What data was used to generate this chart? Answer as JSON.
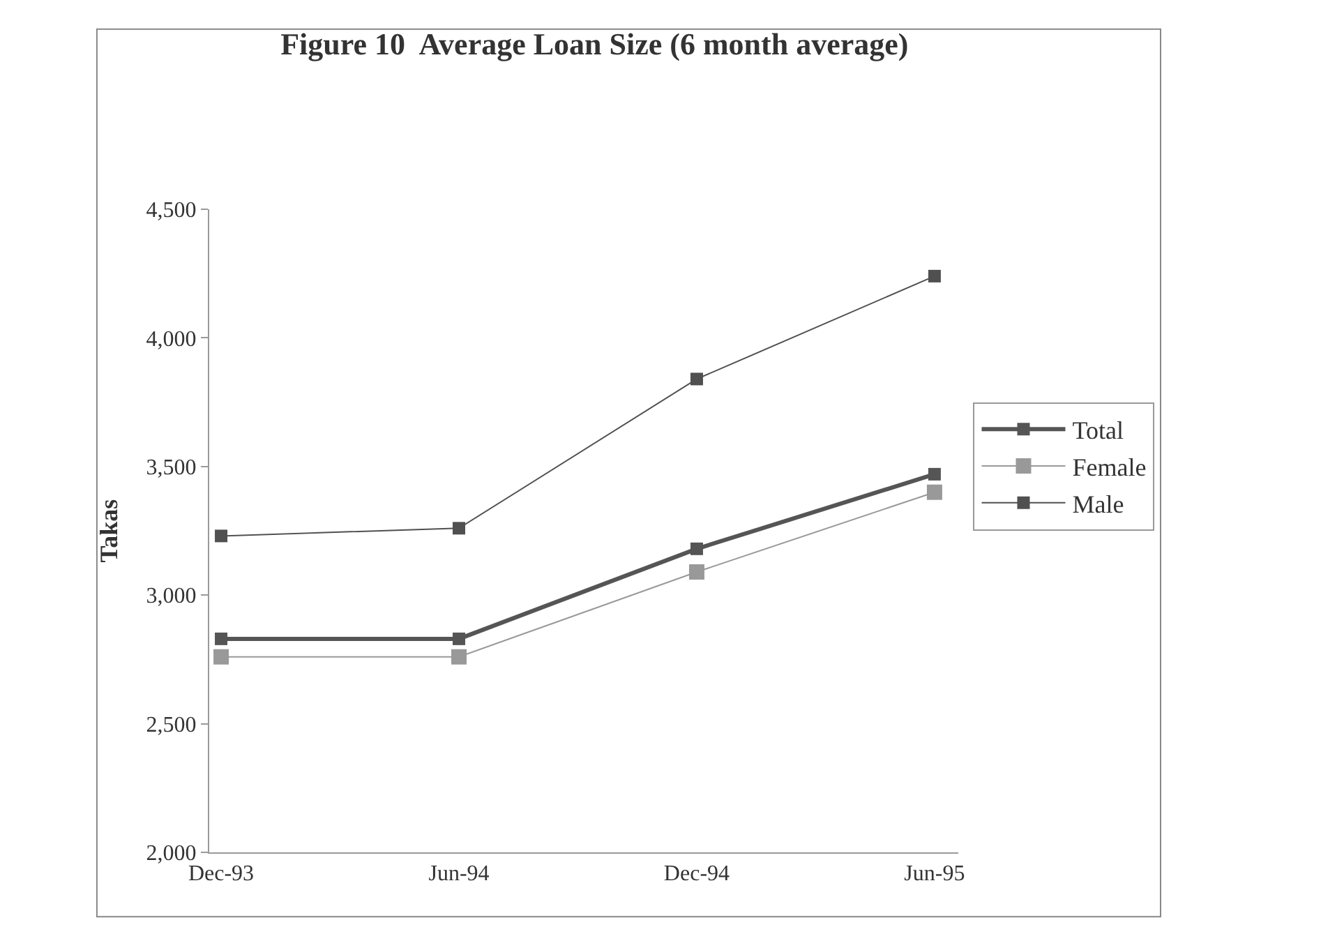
{
  "chart_data": {
    "type": "line",
    "title": "Figure 10  Average Loan Size (6 month average)",
    "ylabel": "Takas",
    "categories": [
      "Dec-93",
      "Jun-94",
      "Dec-94",
      "Jun-95"
    ],
    "series": [
      {
        "name": "Total",
        "color": "#555555",
        "values": [
          2830,
          2830,
          3180,
          3470
        ]
      },
      {
        "name": "Female",
        "color": "#999999",
        "values": [
          2760,
          2760,
          3090,
          3400
        ]
      },
      {
        "name": "Male",
        "color": "#505050",
        "values": [
          3230,
          3260,
          3840,
          4240
        ]
      }
    ],
    "ylim": [
      2000,
      4500
    ],
    "yticks": [
      {
        "value": 2000,
        "label": "2,000"
      },
      {
        "value": 2500,
        "label": "2,500"
      },
      {
        "value": 3000,
        "label": "3,000"
      },
      {
        "value": 3500,
        "label": "3,500"
      },
      {
        "value": 4000,
        "label": "4,000"
      },
      {
        "value": 4500,
        "label": "4,500"
      }
    ],
    "legend": "right",
    "marker": "square",
    "line_style": "solid"
  }
}
